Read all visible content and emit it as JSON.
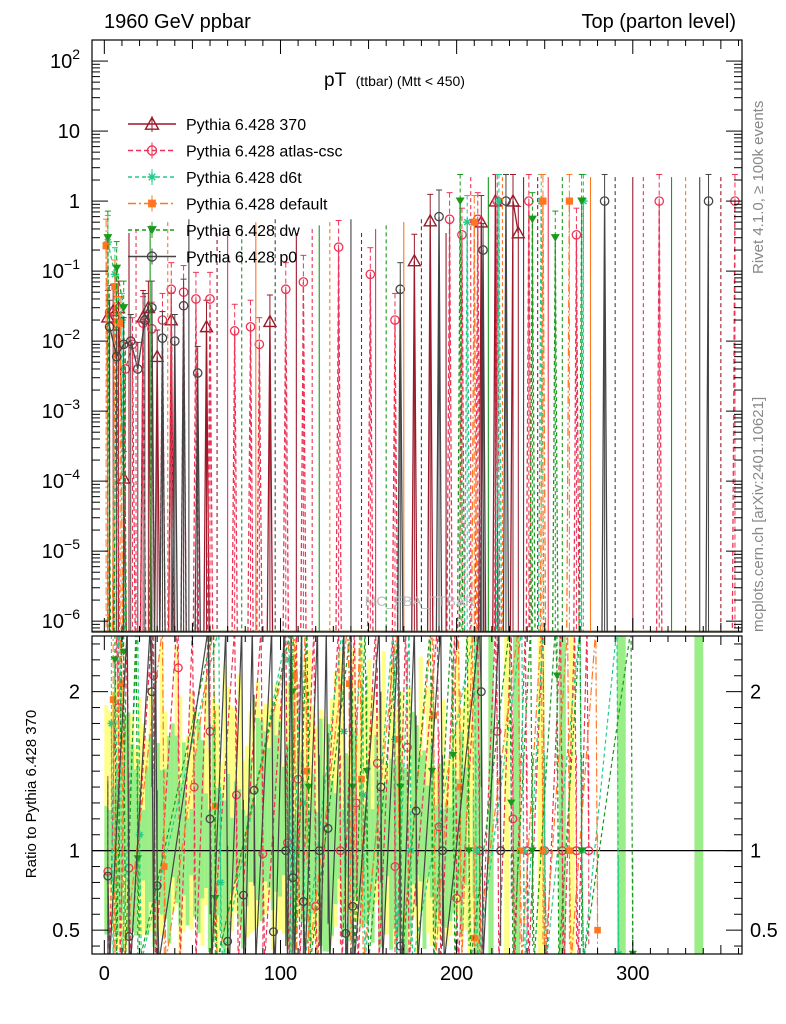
{
  "header": {
    "left": "1960 GeV ppbar",
    "right": "Top (parton level)"
  },
  "side_labels": {
    "rivet": "Rivet 4.1.0, ≥ 100k events",
    "mcplots": "mcplots.cern.ch [arXiv:2401.10621]"
  },
  "watermark": "MC_FBA_TTBAR",
  "chart_data": {
    "type": "line",
    "title": "pT (ttbar) (Mtt < 450)",
    "title_main": "pT",
    "title_sub": "(ttbar) (Mtt < 450)",
    "xlabel": "",
    "ylabel": "",
    "ratio_ylabel": "Ratio to Pythia 6.428 370",
    "xlim": [
      -7,
      362
    ],
    "ylim": [
      7e-07,
      200
    ],
    "ratio_ylim": [
      0.35,
      2.35
    ],
    "xscale": "linear",
    "yscale": "log",
    "x_ticks": [
      "0",
      "100",
      "200",
      "300"
    ],
    "y_ticks": [
      "10^-6",
      "10^-5",
      "10^-4",
      "10^-3",
      "10^-2",
      "10^-1",
      "1",
      "10",
      "10^2"
    ],
    "ratio_ticks": [
      "0.5",
      "1",
      "2"
    ],
    "legend": [
      "Pythia 6.428 370",
      "Pythia 6.428 atlas-csc",
      "Pythia 6.428 d6t",
      "Pythia 6.428 default",
      "Pythia 6.428 dw",
      "Pythia 6.428 p0"
    ],
    "series": [
      {
        "name": "Pythia 6.428 370",
        "color": "#9a1a2a",
        "marker": "triangle-open",
        "dash": "",
        "x": [
          2,
          5,
          8,
          11,
          22,
          25,
          30,
          38,
          58,
          94,
          176,
          185,
          214,
          222,
          232,
          235
        ],
        "y": [
          0.022,
          0.027,
          0.03,
          0.00011,
          0.022,
          0.03,
          0.006,
          0.02,
          0.016,
          0.019,
          0.14,
          0.52,
          0.5,
          1.0,
          1.0,
          0.35
        ]
      },
      {
        "name": "Pythia 6.428 atlas-csc",
        "color": "#ee3355",
        "marker": "circle-open",
        "dash": "5,3",
        "x": [
          3,
          7,
          12,
          16,
          22,
          27,
          33,
          38,
          45,
          52,
          60,
          74,
          83,
          88,
          103,
          113,
          133,
          151,
          165,
          196,
          203,
          212,
          223,
          241,
          268,
          315,
          358
        ],
        "y": [
          0.026,
          0.018,
          0.004,
          0.009,
          0.018,
          0.015,
          0.02,
          0.055,
          0.05,
          0.04,
          0.04,
          0.014,
          0.016,
          0.009,
          0.055,
          0.07,
          0.22,
          0.09,
          0.02,
          0.55,
          0.33,
          0.55,
          1.0,
          1.0,
          0.33,
          1.0,
          1.0
        ]
      },
      {
        "name": "Pythia 6.428 d6t",
        "color": "#22cc88",
        "marker": "star",
        "dash": "4,3",
        "x": [
          2,
          6,
          10,
          206,
          224,
          248,
          272
        ],
        "y": [
          0.26,
          0.09,
          0.02,
          0.5,
          1.0,
          1.0,
          1.0
        ]
      },
      {
        "name": "Pythia 6.428 default",
        "color": "#ff7722",
        "marker": "square",
        "dash": "8,3,2,3",
        "x": [
          1,
          6,
          9,
          210,
          249,
          264
        ],
        "y": [
          0.23,
          0.06,
          0.018,
          0.5,
          1.0,
          1.0
        ]
      },
      {
        "name": "Pythia 6.428 dw",
        "color": "#1a9a1a",
        "marker": "triangle-down",
        "dash": "4,3",
        "x": [
          2,
          7,
          11,
          202,
          243,
          256,
          271
        ],
        "y": [
          0.3,
          0.11,
          0.03,
          1.0,
          0.55,
          0.3,
          1.0
        ]
      },
      {
        "name": "Pythia 6.428 p0",
        "color": "#444444",
        "marker": "circle-open",
        "dash": "",
        "x": [
          3,
          7,
          11,
          15,
          19,
          23,
          27,
          33,
          40,
          45,
          53,
          168,
          190,
          215,
          228,
          284,
          343
        ],
        "y": [
          0.016,
          0.006,
          0.009,
          0.01,
          0.004,
          0.02,
          0.03,
          0.011,
          0.01,
          0.032,
          0.0035,
          0.055,
          0.6,
          0.2,
          1.0,
          1.0,
          1.0
        ]
      }
    ],
    "ratio_series": [
      {
        "name": "Pythia 6.428 370",
        "x": [
          0,
          360
        ],
        "y": [
          1.0,
          1.0
        ]
      },
      {
        "name": "Pythia 6.428 atlas-csc",
        "x": [
          2,
          8,
          14,
          28,
          42,
          51,
          60,
          75,
          90,
          104,
          110,
          120,
          134,
          143,
          155,
          165,
          172,
          190,
          200,
          213,
          223,
          232,
          240,
          250,
          260,
          268,
          275
        ],
        "y": [
          0.87,
          1.9,
          0.89,
          2.1,
          2.15,
          1.4,
          1.75,
          1.35,
          0.98,
          1.05,
          1.45,
          0.65,
          1.0,
          1.3,
          1.55,
          0.9,
          1.65,
          1.15,
          0.7,
          1.0,
          1.75,
          1.2,
          1.0,
          1.0,
          1.0,
          1.0,
          1.0
        ]
      },
      {
        "name": "Pythia 6.428 d6t",
        "x": [
          4,
          9,
          20,
          66,
          105,
          113,
          136,
          147,
          165,
          174,
          211,
          238,
          250,
          271,
          292
        ],
        "y": [
          1.8,
          2.3,
          1.1,
          0.8,
          2.2,
          1.3,
          1.75,
          1.35,
          1.7,
          1.0,
          1.0,
          1.0,
          1.0,
          1.0,
          0.35
        ]
      },
      {
        "name": "Pythia 6.428 default",
        "x": [
          5,
          10,
          34,
          63,
          108,
          115,
          139,
          146,
          167,
          187,
          202,
          210,
          236,
          249,
          264,
          280
        ],
        "y": [
          1.95,
          2.05,
          0.9,
          1.28,
          2.1,
          1.5,
          2.05,
          1.45,
          1.7,
          1.85,
          1.4,
          0.45,
          1.0,
          1.0,
          1.0,
          0.5
        ]
      },
      {
        "name": "Pythia 6.428 dw",
        "x": [
          6,
          11,
          19,
          63,
          107,
          116,
          141,
          149,
          168,
          186,
          198,
          207,
          231,
          243,
          257,
          271,
          300
        ],
        "y": [
          2.2,
          2.25,
          0.95,
          0.7,
          2.0,
          1.4,
          1.4,
          1.5,
          1.4,
          1.5,
          1.6,
          1.0,
          1.3,
          1.0,
          2.1,
          1.0,
          0.35
        ]
      },
      {
        "name": "Pythia 6.428 p0",
        "x": [
          2,
          14,
          27,
          30,
          60,
          70,
          79,
          85,
          96,
          103,
          107,
          113,
          122,
          127,
          137,
          141,
          157,
          168,
          177,
          192,
          214,
          225
        ],
        "y": [
          0.84,
          0.46,
          2.0,
          0.78,
          1.2,
          0.43,
          0.72,
          1.38,
          0.49,
          1.0,
          0.83,
          0.68,
          1.0,
          1.14,
          0.48,
          0.65,
          1.4,
          0.4,
          1.25,
          1.0,
          2.0,
          1.0
        ]
      }
    ]
  }
}
